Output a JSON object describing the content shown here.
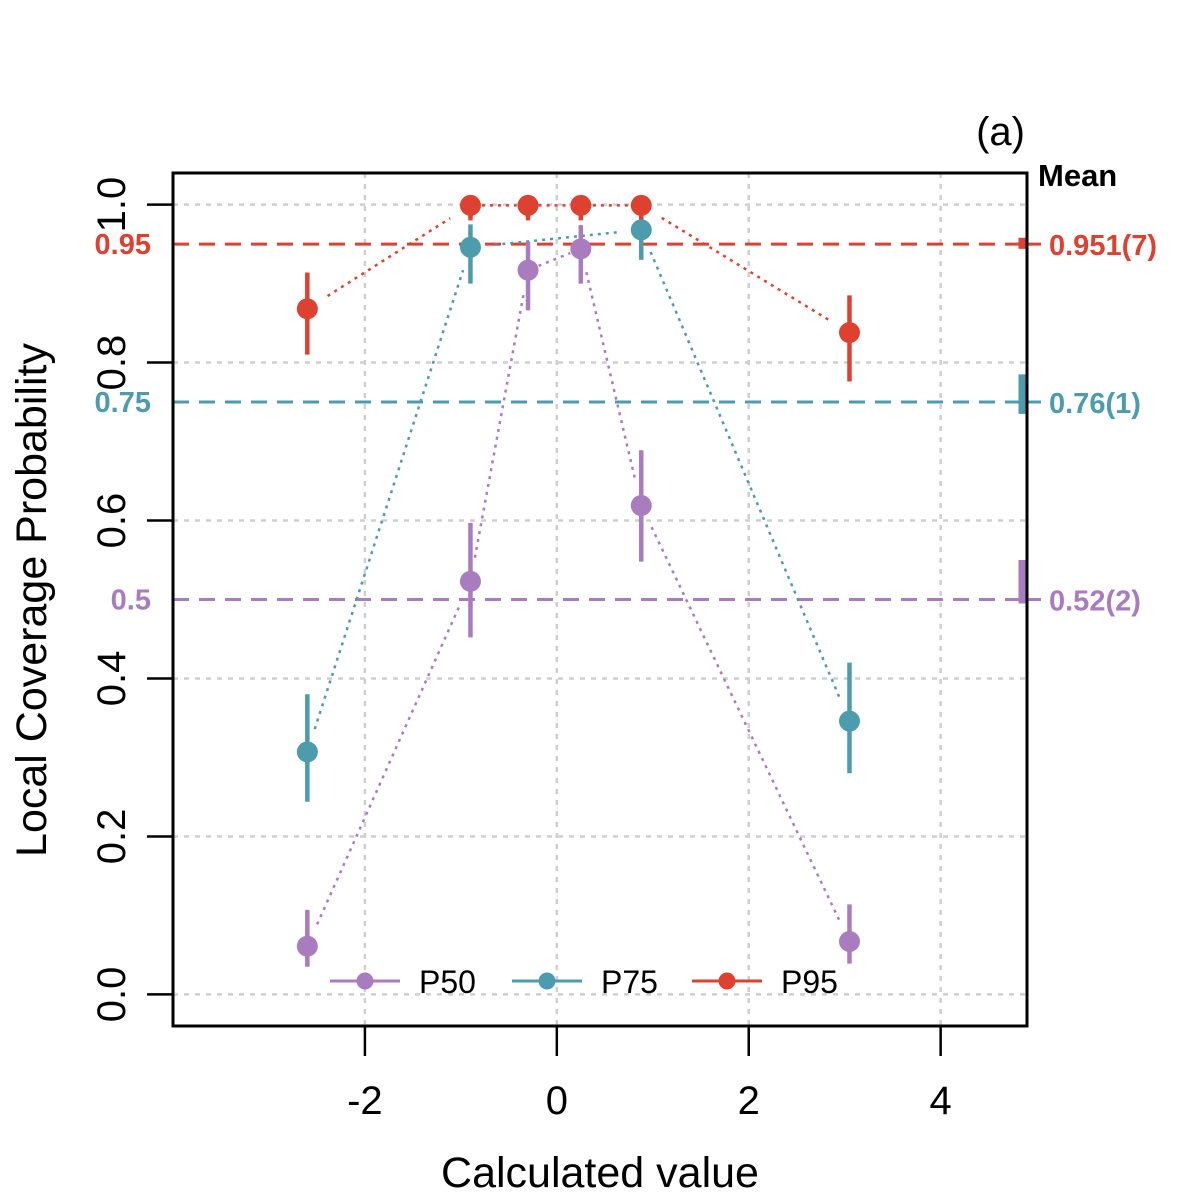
{
  "chart_data": {
    "type": "scatter",
    "panel_label": "(a)",
    "xlabel": "Calculated value",
    "ylabel": "Local Coverage Probability",
    "xlim": [
      -4,
      4.9
    ],
    "ylim": [
      -0.04,
      1.04
    ],
    "x_ticks": [
      -2,
      0,
      2,
      4
    ],
    "x_tick_labels": [
      "-2",
      "0",
      "2",
      "4"
    ],
    "y_ticks": [
      0.0,
      0.2,
      0.4,
      0.6,
      0.8,
      1.0
    ],
    "y_tick_labels": [
      "0.0",
      "0.2",
      "0.4",
      "0.6",
      "0.8",
      "1.0"
    ],
    "grid": true,
    "legend_position": "bottom-center",
    "mean_header": "Mean",
    "series": [
      {
        "name": "P50",
        "color": "#a97cc0",
        "nominal": 0.5,
        "nominal_label": "0.5",
        "mean_label": "0.52(2)",
        "mean_range": [
          0.495,
          0.55
        ],
        "points": [
          {
            "x": -2.6,
            "y": 0.061,
            "lo": 0.035,
            "hi": 0.107
          },
          {
            "x": -0.9,
            "y": 0.523,
            "lo": 0.452,
            "hi": 0.597
          },
          {
            "x": -0.3,
            "y": 0.917,
            "lo": 0.866,
            "hi": 0.953
          },
          {
            "x": 0.25,
            "y": 0.944,
            "lo": 0.9,
            "hi": 0.974
          },
          {
            "x": 0.88,
            "y": 0.619,
            "lo": 0.548,
            "hi": 0.689
          },
          {
            "x": 3.05,
            "y": 0.067,
            "lo": 0.039,
            "hi": 0.114
          }
        ]
      },
      {
        "name": "P75",
        "color": "#4c9cae",
        "nominal": 0.75,
        "nominal_label": "0.75",
        "mean_label": "0.76(1)",
        "mean_range": [
          0.735,
          0.785
        ],
        "points": [
          {
            "x": -2.6,
            "y": 0.307,
            "lo": 0.244,
            "hi": 0.38
          },
          {
            "x": -0.9,
            "y": 0.946,
            "lo": 0.9,
            "hi": 0.975
          },
          {
            "x": 0.88,
            "y": 0.968,
            "lo": 0.93,
            "hi": 0.988
          },
          {
            "x": 3.05,
            "y": 0.346,
            "lo": 0.28,
            "hi": 0.42
          }
        ]
      },
      {
        "name": "P95",
        "color": "#de4130",
        "nominal": 0.95,
        "nominal_label": "0.95",
        "mean_label": "0.951(7)",
        "mean_range": [
          0.944,
          0.958
        ],
        "points": [
          {
            "x": -2.6,
            "y": 0.868,
            "lo": 0.81,
            "hi": 0.914
          },
          {
            "x": -0.9,
            "y": 0.999,
            "lo": 0.98,
            "hi": 1.0
          },
          {
            "x": -0.3,
            "y": 0.999,
            "lo": 0.98,
            "hi": 1.0
          },
          {
            "x": 0.25,
            "y": 0.999,
            "lo": 0.98,
            "hi": 1.0
          },
          {
            "x": 0.88,
            "y": 0.999,
            "lo": 0.98,
            "hi": 1.0
          },
          {
            "x": 3.05,
            "y": 0.838,
            "lo": 0.776,
            "hi": 0.885
          }
        ]
      }
    ]
  }
}
